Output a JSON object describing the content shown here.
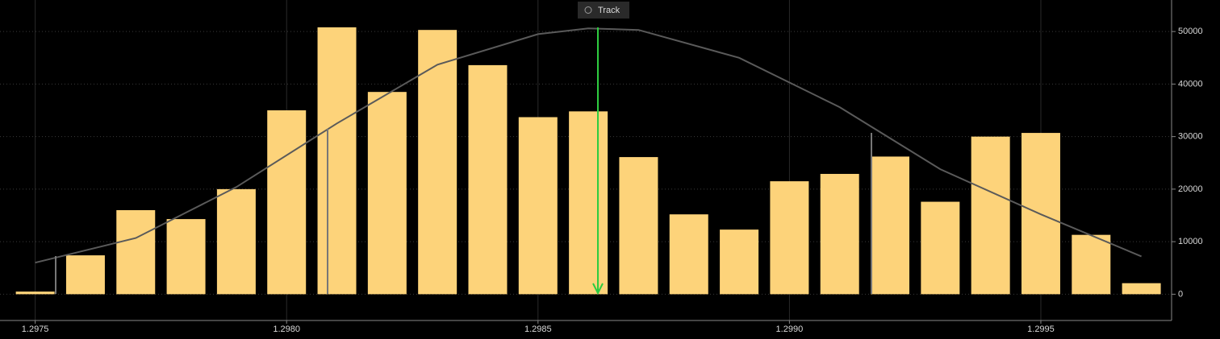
{
  "chart_data": {
    "type": "bar",
    "button": "Track",
    "x": [
      1.2975,
      1.2976,
      1.2977,
      1.2978,
      1.2979,
      1.298,
      1.2981,
      1.2982,
      1.2983,
      1.2984,
      1.2985,
      1.2986,
      1.2987,
      1.2988,
      1.2989,
      1.299,
      1.2991,
      1.2992,
      1.2993,
      1.2994,
      1.2995,
      1.2996,
      1.2997
    ],
    "series": [
      {
        "type": "bar",
        "color": "#fdd37a",
        "values": [
          500,
          7400,
          16000,
          14300,
          20000,
          35000,
          50800,
          38500,
          50300,
          43600,
          33700,
          34800,
          26100,
          15200,
          12300,
          21500,
          22900,
          26200,
          17600,
          30000,
          30700,
          11300,
          2100
        ]
      },
      {
        "type": "line",
        "color": "#5a5a5a",
        "x": [
          1.2975,
          1.2977,
          1.2979,
          1.2981,
          1.2983,
          1.2985,
          1.2986,
          1.2987,
          1.2989,
          1.2991,
          1.2993,
          1.2995,
          1.2997
        ],
        "values": [
          6000,
          10700,
          20400,
          32500,
          43700,
          49500,
          50600,
          50300,
          45000,
          35600,
          23800,
          15200,
          7200
        ]
      }
    ],
    "xlim": [
      1.29743,
      1.29976
    ],
    "ylim": [
      -5000,
      56000
    ],
    "xticks": [
      1.2975,
      {
        "value": 1.298,
        "label": "1.2980"
      },
      1.2985,
      {
        "value": 1.299,
        "label": "1.2990"
      },
      1.2995
    ],
    "yticks": [
      0,
      10000,
      20000,
      30000,
      40000,
      50000
    ],
    "grid": true
  }
}
